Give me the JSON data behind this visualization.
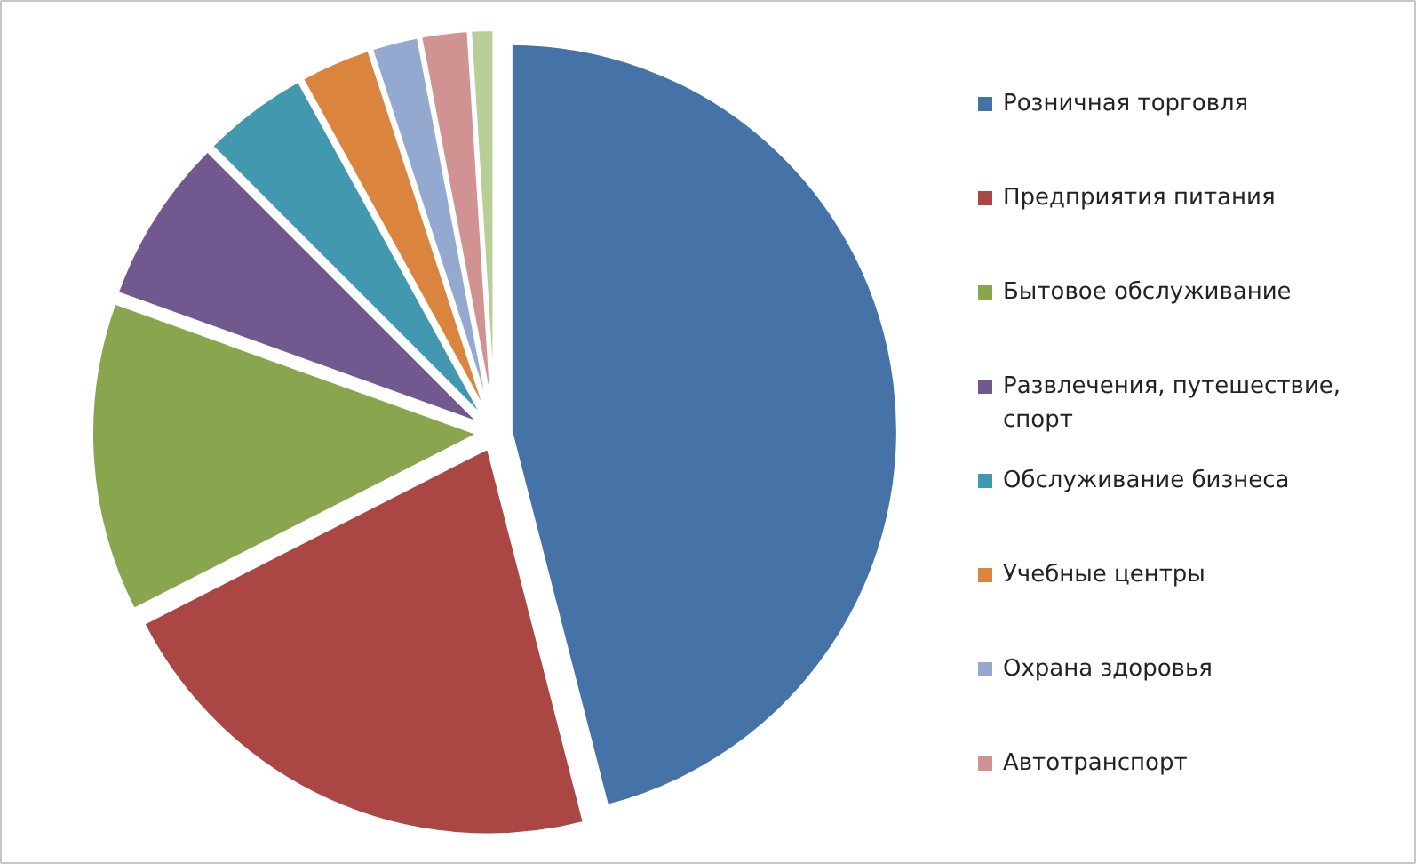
{
  "chart_data": {
    "type": "pie",
    "categories": [
      "Розничная торговля",
      "Предприятия питания",
      "Бытовое обслуживание",
      "Развлечения, путешествие, спорт",
      "Обслуживание бизнеса",
      "Учебные центры",
      "Охрана здоровья",
      "Автотранспорт",
      null
    ],
    "values": [
      46,
      21.5,
      13,
      7,
      4.5,
      3,
      2,
      2,
      1
    ],
    "colors": [
      "#4572a7",
      "#aa4643",
      "#89a54e",
      "#71588f",
      "#4198af",
      "#db843d",
      "#93a9cf",
      "#d19392",
      "#b9cd96"
    ],
    "legend": "right"
  }
}
